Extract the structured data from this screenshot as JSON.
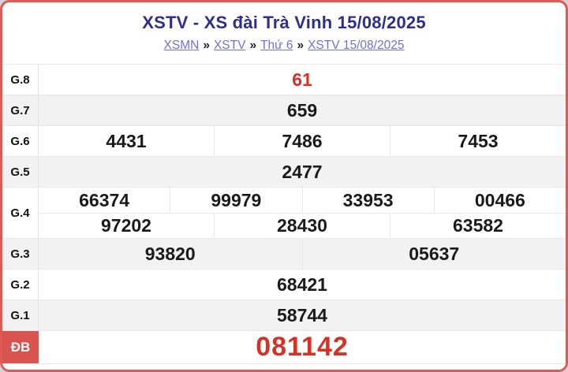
{
  "title": "XSTV - XS đài Trà Vinh 15/08/2025",
  "breadcrumb": {
    "items": [
      "XSMN",
      "XSTV",
      "Thứ 6",
      "XSTV 15/08/2025"
    ],
    "separator": "»"
  },
  "rows": [
    {
      "label": "G.8",
      "lines": [
        [
          "61"
        ]
      ]
    },
    {
      "label": "G.7",
      "lines": [
        [
          "659"
        ]
      ]
    },
    {
      "label": "G.6",
      "lines": [
        [
          "4431",
          "7486",
          "7453"
        ]
      ]
    },
    {
      "label": "G.5",
      "lines": [
        [
          "2477"
        ]
      ]
    },
    {
      "label": "G.4",
      "lines": [
        [
          "66374",
          "99979",
          "33953",
          "00466"
        ],
        [
          "97202",
          "28430",
          "63582"
        ]
      ]
    },
    {
      "label": "G.3",
      "lines": [
        [
          "93820",
          "05637"
        ]
      ]
    },
    {
      "label": "G.2",
      "lines": [
        [
          "68421"
        ]
      ]
    },
    {
      "label": "G.1",
      "lines": [
        [
          "58744"
        ]
      ]
    },
    {
      "label": "ĐB",
      "lines": [
        [
          "081142"
        ]
      ]
    }
  ],
  "colors": {
    "card_border": "#dc5b55",
    "special_label_bg": "#d9534f",
    "number_highlight": "#d93025",
    "title": "#2e2e8f",
    "link": "#6e6ee9",
    "row_alt_bg": "#f2f2f2",
    "divider": "#e8e8e8",
    "page_bg": "#d2d3d5",
    "text": "#1a1a1a"
  }
}
